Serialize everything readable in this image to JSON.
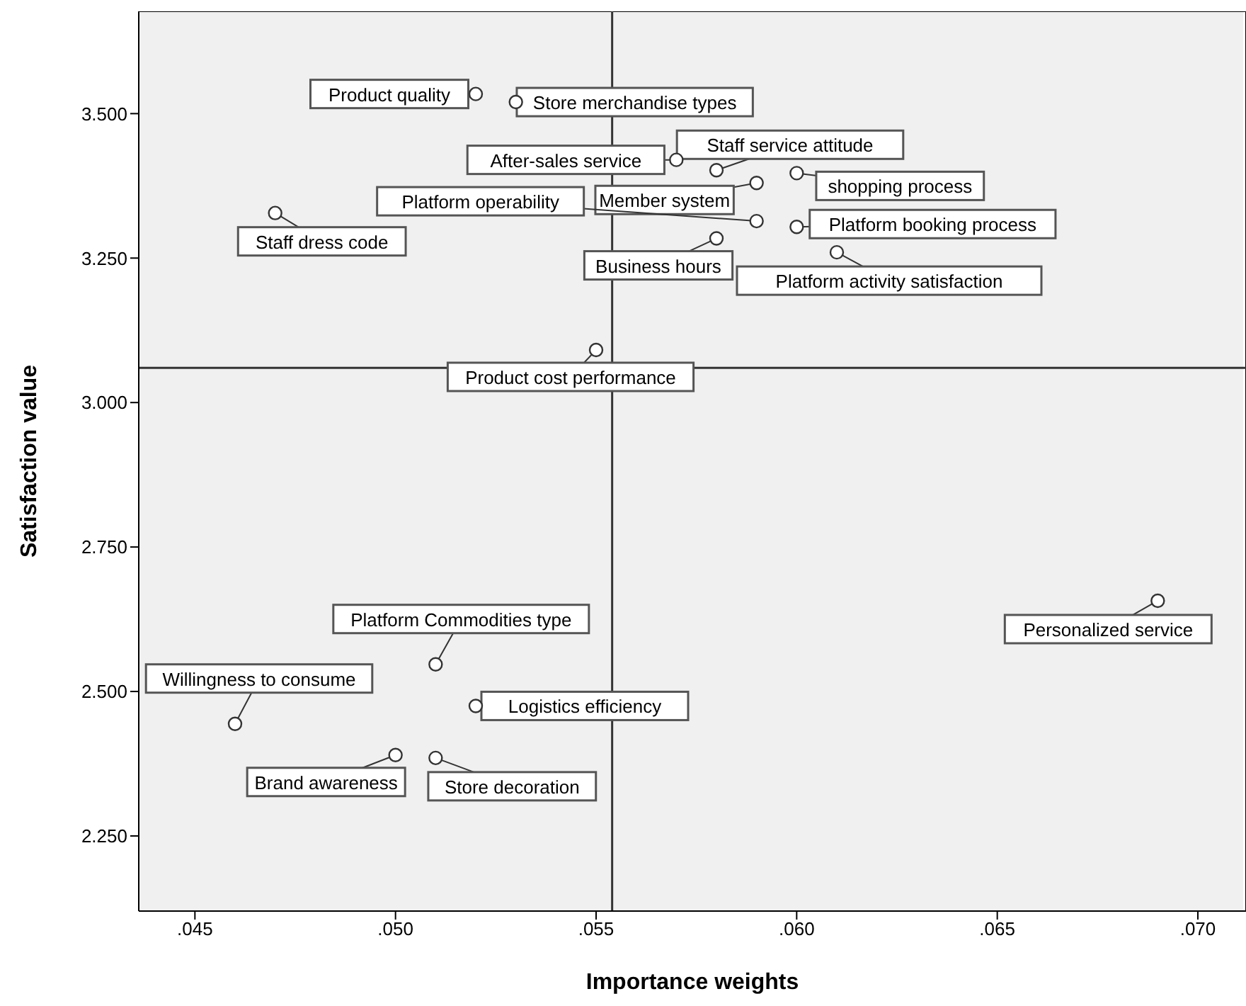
{
  "chart_data": {
    "type": "scatter",
    "xlabel": "Importance weights",
    "ylabel": "Satisfaction value",
    "xlim": [
      0.0436,
      0.0712
    ],
    "ylim": [
      2.12,
      3.677
    ],
    "xticks": [
      {
        "value": 0.045,
        "label": ".045"
      },
      {
        "value": 0.05,
        "label": ".050"
      },
      {
        "value": 0.055,
        "label": ".055"
      },
      {
        "value": 0.06,
        "label": ".060"
      },
      {
        "value": 0.065,
        "label": ".065"
      },
      {
        "value": 0.07,
        "label": ".070"
      }
    ],
    "yticks": [
      {
        "value": 2.25,
        "label": "2.250"
      },
      {
        "value": 2.5,
        "label": "2.500"
      },
      {
        "value": 2.75,
        "label": "2.750"
      },
      {
        "value": 3.0,
        "label": "3.000"
      },
      {
        "value": 3.25,
        "label": "3.250"
      },
      {
        "value": 3.5,
        "label": "3.500"
      }
    ],
    "grid": false,
    "marker": "circle",
    "legend": false,
    "series": [
      {
        "color": "#333333",
        "x": [
          0.052,
          0.053,
          0.057,
          0.058,
          0.059,
          0.059,
          0.06,
          0.06,
          0.058,
          0.061,
          0.047,
          0.055,
          0.069,
          0.051,
          0.046,
          0.052,
          0.05,
          0.051
        ],
        "values": [
          3.534,
          3.52,
          3.42,
          3.402,
          3.38,
          3.314,
          3.397,
          3.304,
          3.284,
          3.26,
          3.328,
          3.091,
          2.657,
          2.547,
          2.444,
          2.475,
          2.39,
          2.385
        ]
      }
    ],
    "ref_lines": [
      {
        "axis": "x",
        "value": 0.0554,
        "color": "#333333"
      },
      {
        "axis": "y",
        "value": 3.06,
        "color": "#333333"
      }
    ],
    "annotations": [
      {
        "text": "Product quality",
        "x": 0.052,
        "y": 3.534
      },
      {
        "text": "Store merchandise types",
        "x": 0.053,
        "y": 3.52
      },
      {
        "text": "After-sales service",
        "x": 0.057,
        "y": 3.42
      },
      {
        "text": "Staff service attitude",
        "x": 0.058,
        "y": 3.402
      },
      {
        "text": "Member system",
        "x": 0.059,
        "y": 3.38
      },
      {
        "text": "Platform operability",
        "x": 0.059,
        "y": 3.314
      },
      {
        "text": "shopping process",
        "x": 0.06,
        "y": 3.397
      },
      {
        "text": "Platform booking process",
        "x": 0.06,
        "y": 3.304
      },
      {
        "text": "Business hours",
        "x": 0.058,
        "y": 3.284
      },
      {
        "text": "Platform activity satisfaction",
        "x": 0.061,
        "y": 3.26
      },
      {
        "text": "Staff dress code",
        "x": 0.047,
        "y": 3.328
      },
      {
        "text": "Product cost performance",
        "x": 0.055,
        "y": 3.091
      },
      {
        "text": "Personalized service",
        "x": 0.069,
        "y": 2.657
      },
      {
        "text": "Platform Commodities type",
        "x": 0.051,
        "y": 2.547
      },
      {
        "text": "Willingness to consume",
        "x": 0.046,
        "y": 2.444
      },
      {
        "text": "Logistics efficiency",
        "x": 0.052,
        "y": 2.475
      },
      {
        "text": "Brand awareness",
        "x": 0.05,
        "y": 2.39
      },
      {
        "text": "Store decoration",
        "x": 0.051,
        "y": 2.385
      }
    ]
  }
}
